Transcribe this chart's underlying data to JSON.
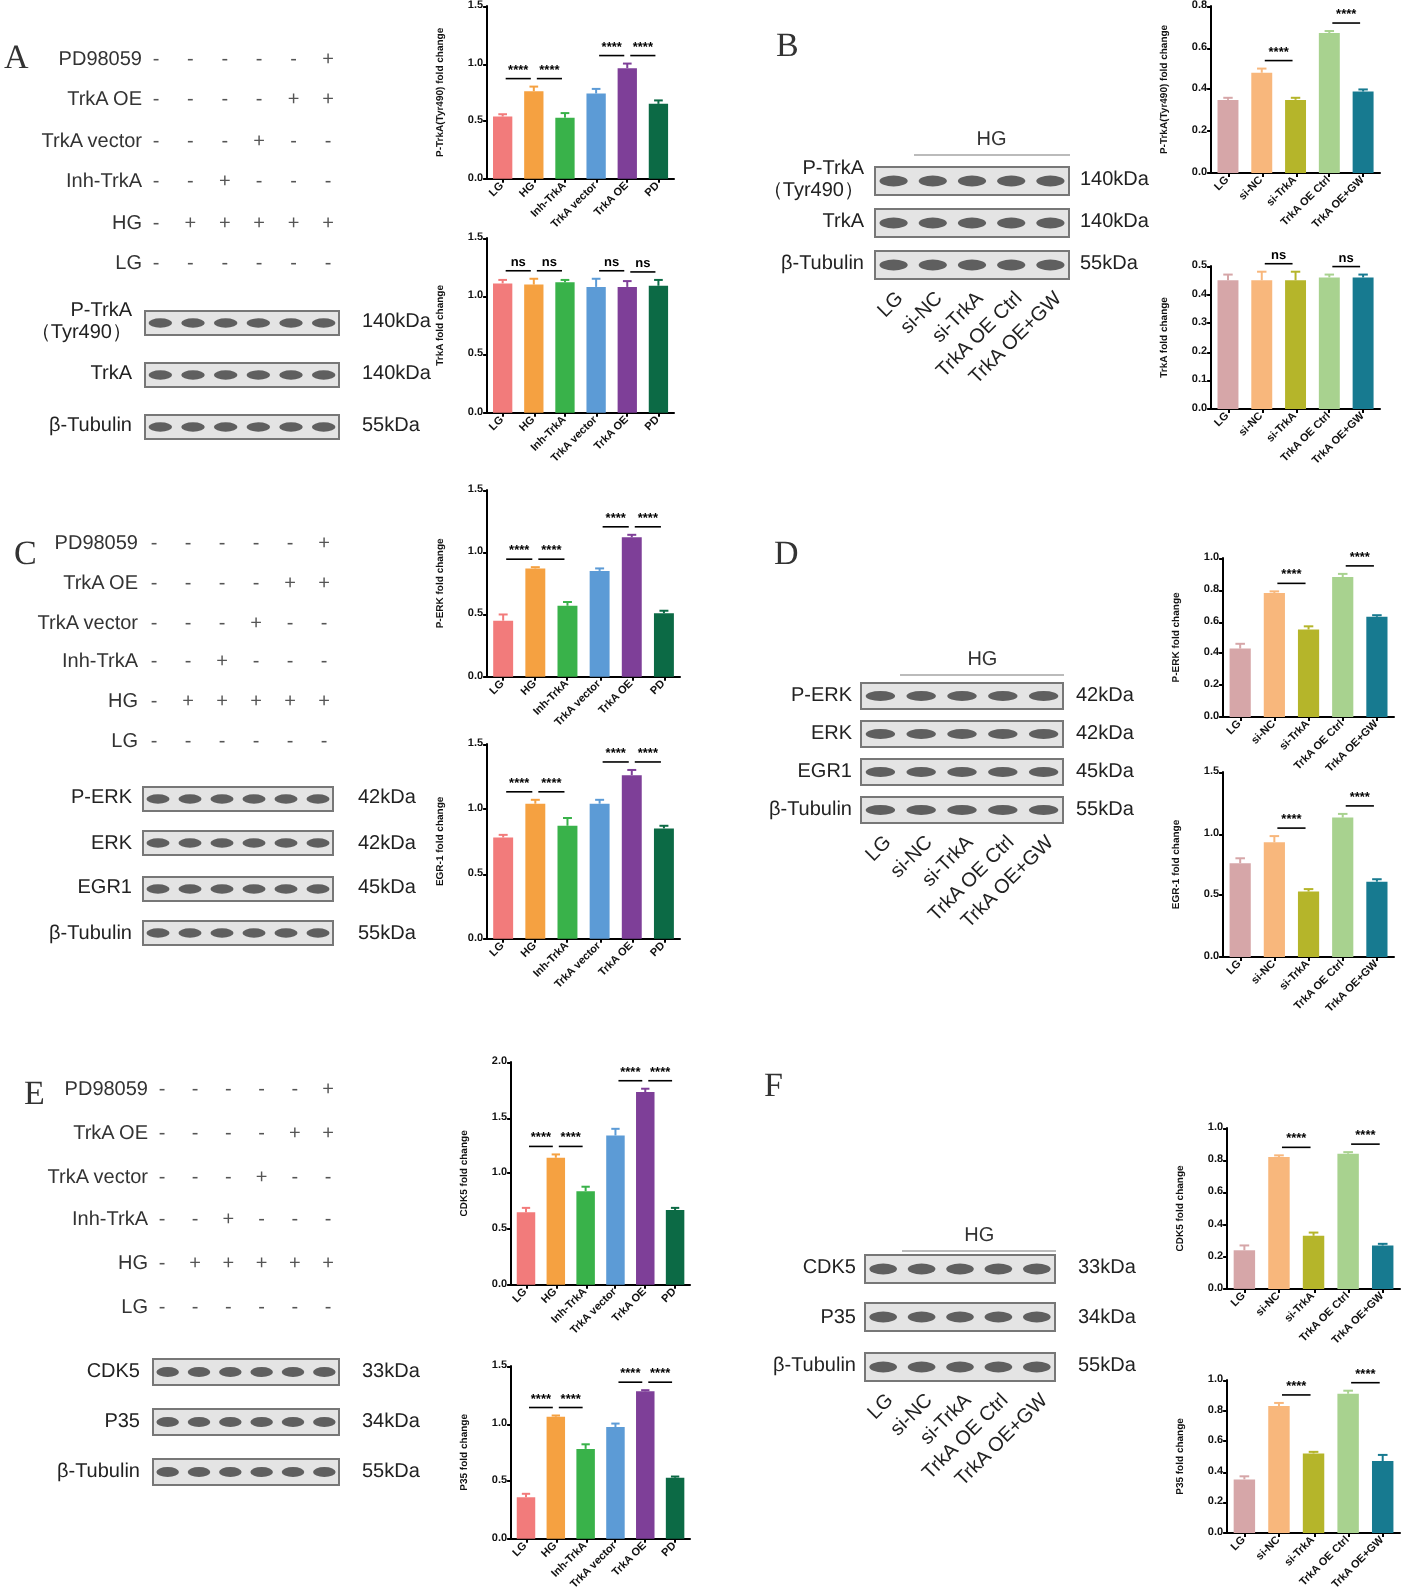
{
  "chart_data": [
    {
      "type": "other",
      "title": "A",
      "y_categories": [
        "PD98059",
        "TrkA OE",
        "TrkA vector",
        "Inh-TrkA",
        "HG",
        "LG"
      ],
      "cell_labels": [
        [
          "-",
          "-",
          "-",
          "-",
          "-",
          "+"
        ],
        [
          "-",
          "-",
          "-",
          "-",
          "+",
          "+"
        ],
        [
          "-",
          "-",
          "-",
          "+",
          "-",
          "-"
        ],
        [
          "-",
          "-",
          "+",
          "-",
          "-",
          "-"
        ],
        [
          "-",
          "+",
          "+",
          "+",
          "+",
          "+"
        ],
        [
          "-",
          "-",
          "-",
          "-",
          "-",
          "-"
        ]
      ]
    },
    {
      "type": "other",
      "categories": [
        null,
        null,
        null,
        null,
        null,
        null
      ],
      "y_categories": [
        "P-TrkA （Tyr490）",
        "TrkA",
        "β-Tubulin"
      ],
      "y2_categories": [
        "140kDa",
        "140kDa",
        "55kDa"
      ]
    },
    {
      "type": "bar",
      "ylabel": "P-TrkA(Tyr490) fold change",
      "categories": [
        "LG",
        "HG",
        "Inh-TrkA",
        "TrkA vector",
        "TrkA OE",
        "PD"
      ],
      "values": [
        0.54,
        0.76,
        0.53,
        0.74,
        0.96,
        0.65
      ],
      "errors": [
        [
          0.54,
          0.56
        ],
        [
          0.76,
          0.8
        ],
        [
          0.53,
          0.57
        ],
        [
          0.74,
          0.78
        ],
        [
          0.96,
          1.0
        ],
        [
          0.65,
          0.68
        ]
      ],
      "colors": [
        "#f27b7b",
        "#f5a141",
        "#39b24a",
        "#5c9bd6",
        "#7e3f98",
        "#0c6a45"
      ],
      "ylim": [
        0,
        1.5
      ],
      "yticks": [
        {
          "value": 0,
          "label": "0.0"
        },
        0.5,
        {
          "value": 1,
          "label": "1.0"
        },
        1.5
      ],
      "annotations": [
        "****",
        "****",
        "****",
        "****"
      ]
    },
    {
      "type": "bar",
      "ylabel": "TrkA fold change",
      "categories": [
        "LG",
        "HG",
        "Inh-TrkA",
        "TrkA vector",
        "TrkA OE",
        "PD"
      ],
      "values": [
        1.11,
        1.1,
        1.12,
        1.08,
        1.08,
        1.09
      ],
      "errors": [
        [
          1.11,
          1.14
        ],
        [
          1.1,
          1.15
        ],
        [
          1.12,
          1.14
        ],
        [
          1.08,
          1.15
        ],
        [
          1.08,
          1.13
        ],
        [
          1.09,
          1.14
        ]
      ],
      "colors": [
        "#f27b7b",
        "#f5a141",
        "#39b24a",
        "#5c9bd6",
        "#7e3f98",
        "#0c6a45"
      ],
      "ylim": [
        0,
        1.5
      ],
      "yticks": [
        {
          "value": 0,
          "label": "0.0"
        },
        0.5,
        {
          "value": 1,
          "label": "1.0"
        },
        1.5
      ],
      "annotations": [
        "ns",
        "ns",
        "ns",
        "ns"
      ]
    },
    {
      "type": "other",
      "title": "B",
      "annotations": [
        "HG"
      ],
      "categories": [
        "LG",
        "si-NC",
        "si-TrkA",
        "TrkA OE Ctrl",
        "TrkA OE+GW"
      ],
      "y_categories": [
        "P-TrkA （Tyr490）",
        "TrkA",
        "β-Tubulin"
      ],
      "y2_categories": [
        "140kDa",
        "140kDa",
        "55kDa"
      ]
    },
    {
      "type": "bar",
      "ylabel": "P-TrkA(Tyr490) fold change",
      "categories": [
        "LG",
        "si-NC",
        "si-TrkA",
        "TrkA OE Ctrl",
        "TrkA OE+GW"
      ],
      "values": [
        0.35,
        0.48,
        0.35,
        0.67,
        0.39
      ],
      "errors": [
        [
          0.35,
          0.36
        ],
        [
          0.48,
          0.5
        ],
        [
          0.35,
          0.36
        ],
        [
          0.67,
          0.68
        ],
        [
          0.39,
          0.4
        ]
      ],
      "colors": [
        "#d6a6a8",
        "#f8b77c",
        "#b5b52a",
        "#a8d28f",
        "#177a90"
      ],
      "ylim": [
        0,
        0.8
      ],
      "yticks": [
        {
          "value": 0,
          "label": "0.0"
        },
        0.2,
        0.4,
        0.6,
        0.8
      ],
      "annotations": [
        "****",
        "****"
      ]
    },
    {
      "type": "bar",
      "ylabel": "TrkA fold change",
      "categories": [
        "LG",
        "si-NC",
        "si-TrkA",
        "TrkA OE Ctrl",
        "TrkA OE+GW"
      ],
      "values": [
        0.45,
        0.45,
        0.45,
        0.46,
        0.46
      ],
      "errors": [
        [
          0.45,
          0.47
        ],
        [
          0.45,
          0.48
        ],
        [
          0.45,
          0.48
        ],
        [
          0.46,
          0.47
        ],
        [
          0.46,
          0.47
        ]
      ],
      "colors": [
        "#d6a6a8",
        "#f8b77c",
        "#b5b52a",
        "#a8d28f",
        "#177a90"
      ],
      "ylim": [
        0,
        0.5
      ],
      "yticks": [
        {
          "value": 0,
          "label": "0.0"
        },
        0.1,
        0.2,
        0.3,
        0.4,
        0.5
      ],
      "annotations": [
        "ns",
        "ns"
      ]
    },
    {
      "type": "other",
      "title": "C",
      "y_categories": [
        "PD98059",
        "TrkA OE",
        "TrkA vector",
        "Inh-TrkA",
        "HG",
        "LG"
      ],
      "cell_labels": [
        [
          "-",
          "-",
          "-",
          "-",
          "-",
          "+"
        ],
        [
          "-",
          "-",
          "-",
          "-",
          "+",
          "+"
        ],
        [
          "-",
          "-",
          "-",
          "+",
          "-",
          "-"
        ],
        [
          "-",
          "-",
          "+",
          "-",
          "-",
          "-"
        ],
        [
          "-",
          "+",
          "+",
          "+",
          "+",
          "+"
        ],
        [
          "-",
          "-",
          "-",
          "-",
          "-",
          "-"
        ]
      ]
    },
    {
      "type": "other",
      "categories": [
        null,
        null,
        null,
        null,
        null,
        null
      ],
      "y_categories": [
        "P-ERK",
        "ERK",
        "EGR1",
        "β-Tubulin"
      ],
      "y2_categories": [
        "42kDa",
        "42kDa",
        "45kDa",
        "55kDa"
      ]
    },
    {
      "type": "bar",
      "ylabel": "P-ERK fold change",
      "categories": [
        "LG",
        "HG",
        "Inh-TrkA",
        "TrkA vector",
        "TrkA OE",
        "PD"
      ],
      "values": [
        0.45,
        0.87,
        0.57,
        0.85,
        1.12,
        0.51
      ],
      "errors": [
        [
          0.45,
          0.5
        ],
        [
          0.87,
          0.88
        ],
        [
          0.57,
          0.6
        ],
        [
          0.85,
          0.87
        ],
        [
          1.12,
          1.14
        ],
        [
          0.51,
          0.53
        ]
      ],
      "colors": [
        "#f27b7b",
        "#f5a141",
        "#39b24a",
        "#5c9bd6",
        "#7e3f98",
        "#0c6a45"
      ],
      "ylim": [
        0,
        1.5
      ],
      "yticks": [
        {
          "value": 0,
          "label": "0.0"
        },
        0.5,
        {
          "value": 1,
          "label": "1.0"
        },
        1.5
      ],
      "annotations": [
        "****",
        "****",
        "****",
        "****"
      ]
    },
    {
      "type": "bar",
      "ylabel": "EGR-1 fold change",
      "categories": [
        "LG",
        "HG",
        "Inh-TrkA",
        "TrkA vector",
        "TrkA OE",
        "PD"
      ],
      "values": [
        0.78,
        1.04,
        0.87,
        1.04,
        1.26,
        0.85
      ],
      "errors": [
        [
          0.78,
          0.8
        ],
        [
          1.04,
          1.07
        ],
        [
          0.87,
          0.93
        ],
        [
          1.04,
          1.07
        ],
        [
          1.26,
          1.3
        ],
        [
          0.85,
          0.87
        ]
      ],
      "colors": [
        "#f27b7b",
        "#f5a141",
        "#39b24a",
        "#5c9bd6",
        "#7e3f98",
        "#0c6a45"
      ],
      "ylim": [
        0,
        1.5
      ],
      "yticks": [
        {
          "value": 0,
          "label": "0.0"
        },
        0.5,
        {
          "value": 1,
          "label": "1.0"
        },
        1.5
      ],
      "annotations": [
        "****",
        "****",
        "****",
        "****"
      ]
    },
    {
      "type": "other",
      "title": "D",
      "annotations": [
        "HG"
      ],
      "categories": [
        "LG",
        "si-NC",
        "si-TrkA",
        "TrkA OE Ctrl",
        "TrkA OE+GW"
      ],
      "y_categories": [
        "P-ERK",
        "ERK",
        "EGR1",
        "β-Tubulin"
      ],
      "y2_categories": [
        "42kDa",
        "42kDa",
        "45kDa",
        "55kDa"
      ]
    },
    {
      "type": "bar",
      "ylabel": "P-ERK fold change",
      "categories": [
        "LG",
        "si-NC",
        "si-TrkA",
        "TrkA OE Ctrl",
        "TrkA OE+GW"
      ],
      "values": [
        0.43,
        0.78,
        0.55,
        0.88,
        0.63
      ],
      "errors": [
        [
          0.43,
          0.46
        ],
        [
          0.78,
          0.79
        ],
        [
          0.55,
          0.57
        ],
        [
          0.88,
          0.9
        ],
        [
          0.63,
          0.64
        ]
      ],
      "colors": [
        "#d6a6a8",
        "#f8b77c",
        "#b5b52a",
        "#a8d28f",
        "#177a90"
      ],
      "ylim": [
        0,
        1
      ],
      "yticks": [
        {
          "value": 0,
          "label": "0.0"
        },
        0.2,
        0.4,
        0.6,
        0.8,
        {
          "value": 1,
          "label": "1.0"
        }
      ],
      "annotations": [
        "****",
        "****"
      ]
    },
    {
      "type": "bar",
      "ylabel": "EGR-1 fold change",
      "categories": [
        "LG",
        "si-NC",
        "si-TrkA",
        "TrkA OE Ctrl",
        "TrkA OE+GW"
      ],
      "values": [
        0.76,
        0.93,
        0.53,
        1.13,
        0.61
      ],
      "errors": [
        [
          0.76,
          0.8
        ],
        [
          0.93,
          0.98
        ],
        [
          0.53,
          0.55
        ],
        [
          1.13,
          1.16
        ],
        [
          0.61,
          0.63
        ]
      ],
      "colors": [
        "#d6a6a8",
        "#f8b77c",
        "#b5b52a",
        "#a8d28f",
        "#177a90"
      ],
      "ylim": [
        0,
        1.5
      ],
      "yticks": [
        {
          "value": 0,
          "label": "0.0"
        },
        0.5,
        {
          "value": 1,
          "label": "1.0"
        },
        1.5
      ],
      "annotations": [
        "****",
        "****"
      ]
    },
    {
      "type": "other",
      "title": "E",
      "y_categories": [
        "PD98059",
        "TrkA OE",
        "TrkA vector",
        "Inh-TrkA",
        "HG",
        "LG"
      ],
      "cell_labels": [
        [
          "-",
          "-",
          "-",
          "-",
          "-",
          "+"
        ],
        [
          "-",
          "-",
          "-",
          "-",
          "+",
          "+"
        ],
        [
          "-",
          "-",
          "-",
          "+",
          "-",
          "-"
        ],
        [
          "-",
          "-",
          "+",
          "-",
          "-",
          "-"
        ],
        [
          "-",
          "+",
          "+",
          "+",
          "+",
          "+"
        ],
        [
          "-",
          "-",
          "-",
          "-",
          "-",
          "-"
        ]
      ]
    },
    {
      "type": "other",
      "categories": [
        null,
        null,
        null,
        null,
        null,
        null
      ],
      "y_categories": [
        "CDK5",
        "P35",
        "β-Tubulin"
      ],
      "y2_categories": [
        "33kDa",
        "34kDa",
        "55kDa"
      ]
    },
    {
      "type": "bar",
      "ylabel": "CDK5 fold change",
      "categories": [
        "LG",
        "HG",
        "Inh-TrkA",
        "TrkA vector",
        "TrkA OE",
        "PD"
      ],
      "values": [
        0.65,
        1.14,
        0.84,
        1.34,
        1.73,
        0.67
      ],
      "errors": [
        [
          0.65,
          0.69
        ],
        [
          1.14,
          1.17
        ],
        [
          0.84,
          0.88
        ],
        [
          1.34,
          1.4
        ],
        [
          1.73,
          1.76
        ],
        [
          0.67,
          0.69
        ]
      ],
      "colors": [
        "#f27b7b",
        "#f5a141",
        "#39b24a",
        "#5c9bd6",
        "#7e3f98",
        "#0c6a45"
      ],
      "ylim": [
        0,
        2
      ],
      "yticks": [
        {
          "value": 0,
          "label": "0.0"
        },
        0.5,
        {
          "value": 1,
          "label": "1.0"
        },
        1.5,
        {
          "value": 2,
          "label": "2.0"
        }
      ],
      "annotations": [
        "****",
        "****",
        "****",
        "****"
      ]
    },
    {
      "type": "bar",
      "ylabel": "P35 fold change",
      "categories": [
        "LG",
        "HG",
        "Inh-TrkA",
        "TrkA vector",
        "TrkA OE",
        "PD"
      ],
      "values": [
        0.36,
        1.06,
        0.78,
        0.97,
        1.28,
        0.53
      ],
      "errors": [
        [
          0.36,
          0.39
        ],
        [
          1.06,
          1.07
        ],
        [
          0.78,
          0.82
        ],
        [
          0.97,
          1.0
        ],
        [
          1.28,
          1.29
        ],
        [
          0.53,
          0.54
        ]
      ],
      "colors": [
        "#f27b7b",
        "#f5a141",
        "#39b24a",
        "#5c9bd6",
        "#7e3f98",
        "#0c6a45"
      ],
      "ylim": [
        0,
        1.5
      ],
      "yticks": [
        {
          "value": 0,
          "label": "0.0"
        },
        0.5,
        {
          "value": 1,
          "label": "1.0"
        },
        1.5
      ],
      "annotations": [
        "****",
        "****",
        "****",
        "****"
      ]
    },
    {
      "type": "other",
      "title": "F",
      "annotations": [
        "HG"
      ],
      "categories": [
        "LG",
        "si-NC",
        "si-TrkA",
        "TrkA OE Ctrl",
        "TrkA OE+GW"
      ],
      "y_categories": [
        "CDK5",
        "P35",
        "β-Tubulin"
      ],
      "y2_categories": [
        "33kDa",
        "34kDa",
        "55kDa"
      ]
    },
    {
      "type": "bar",
      "ylabel": "CDK5 fold change",
      "categories": [
        "LG",
        "si-NC",
        "si-TrkA",
        "TrkA OE Ctrl",
        "TrkA OE+GW"
      ],
      "values": [
        0.24,
        0.82,
        0.33,
        0.84,
        0.27
      ],
      "errors": [
        [
          0.24,
          0.27
        ],
        [
          0.82,
          0.83
        ],
        [
          0.33,
          0.35
        ],
        [
          0.84,
          0.85
        ],
        [
          0.27,
          0.28
        ]
      ],
      "colors": [
        "#d6a6a8",
        "#f8b77c",
        "#b5b52a",
        "#a8d28f",
        "#177a90"
      ],
      "ylim": [
        0,
        1
      ],
      "yticks": [
        {
          "value": 0,
          "label": "0.0"
        },
        0.2,
        0.4,
        0.6,
        0.8,
        {
          "value": 1,
          "label": "1.0"
        }
      ],
      "annotations": [
        "****",
        "****"
      ]
    },
    {
      "type": "bar",
      "ylabel": "P35 fold change",
      "categories": [
        "LG",
        "si-NC",
        "si-TrkA",
        "TrkA OE Ctrl",
        "TrkA OE+GW"
      ],
      "values": [
        0.35,
        0.83,
        0.52,
        0.91,
        0.47
      ],
      "errors": [
        [
          0.35,
          0.37
        ],
        [
          0.83,
          0.85
        ],
        [
          0.52,
          0.53
        ],
        [
          0.91,
          0.93
        ],
        [
          0.47,
          0.51
        ]
      ],
      "colors": [
        "#d6a6a8",
        "#f8b77c",
        "#b5b52a",
        "#a8d28f",
        "#177a90"
      ],
      "ylim": [
        0,
        1
      ],
      "yticks": [
        {
          "value": 0,
          "label": "0.0"
        },
        0.2,
        0.4,
        0.6,
        0.8,
        {
          "value": 1,
          "label": "1.0"
        }
      ],
      "annotations": [
        "****",
        "****"
      ]
    }
  ]
}
